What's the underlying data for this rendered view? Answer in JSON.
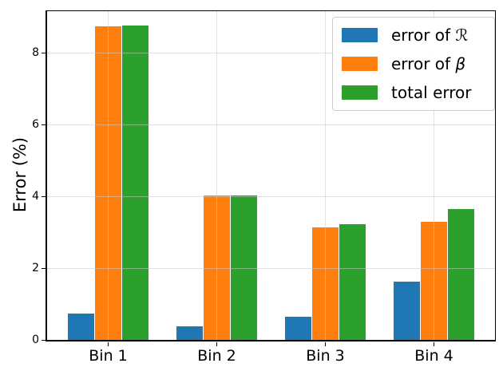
{
  "chart_data": {
    "type": "bar",
    "title": "",
    "categories": [
      "Bin 1",
      "Bin 2",
      "Bin 3",
      "Bin 4"
    ],
    "series": [
      {
        "name": "error of ℛ",
        "label_prefix": "error of ",
        "label_symbol": "ℛ",
        "symbol_style": "script",
        "color": "#1f77b4",
        "values": [
          0.74,
          0.38,
          0.64,
          1.62
        ]
      },
      {
        "name": "error of β",
        "label_prefix": "error of ",
        "label_symbol": "β",
        "symbol_style": "italic",
        "color": "#ff7f0e",
        "values": [
          8.72,
          4.01,
          3.14,
          3.28
        ]
      },
      {
        "name": "total error",
        "label_prefix": "total error",
        "label_symbol": "",
        "symbol_style": "",
        "color": "#2ca02c",
        "values": [
          8.75,
          4.03,
          3.21,
          3.65
        ]
      }
    ],
    "xlabel": "",
    "ylabel": "Error (%)",
    "yticks": [
      0,
      2,
      4,
      6,
      8
    ],
    "ylim": [
      0,
      9.15
    ],
    "grid": true,
    "grid_on_top": true,
    "legend_position": "upper right",
    "axis_color": "#000000",
    "background": "#ffffff"
  }
}
